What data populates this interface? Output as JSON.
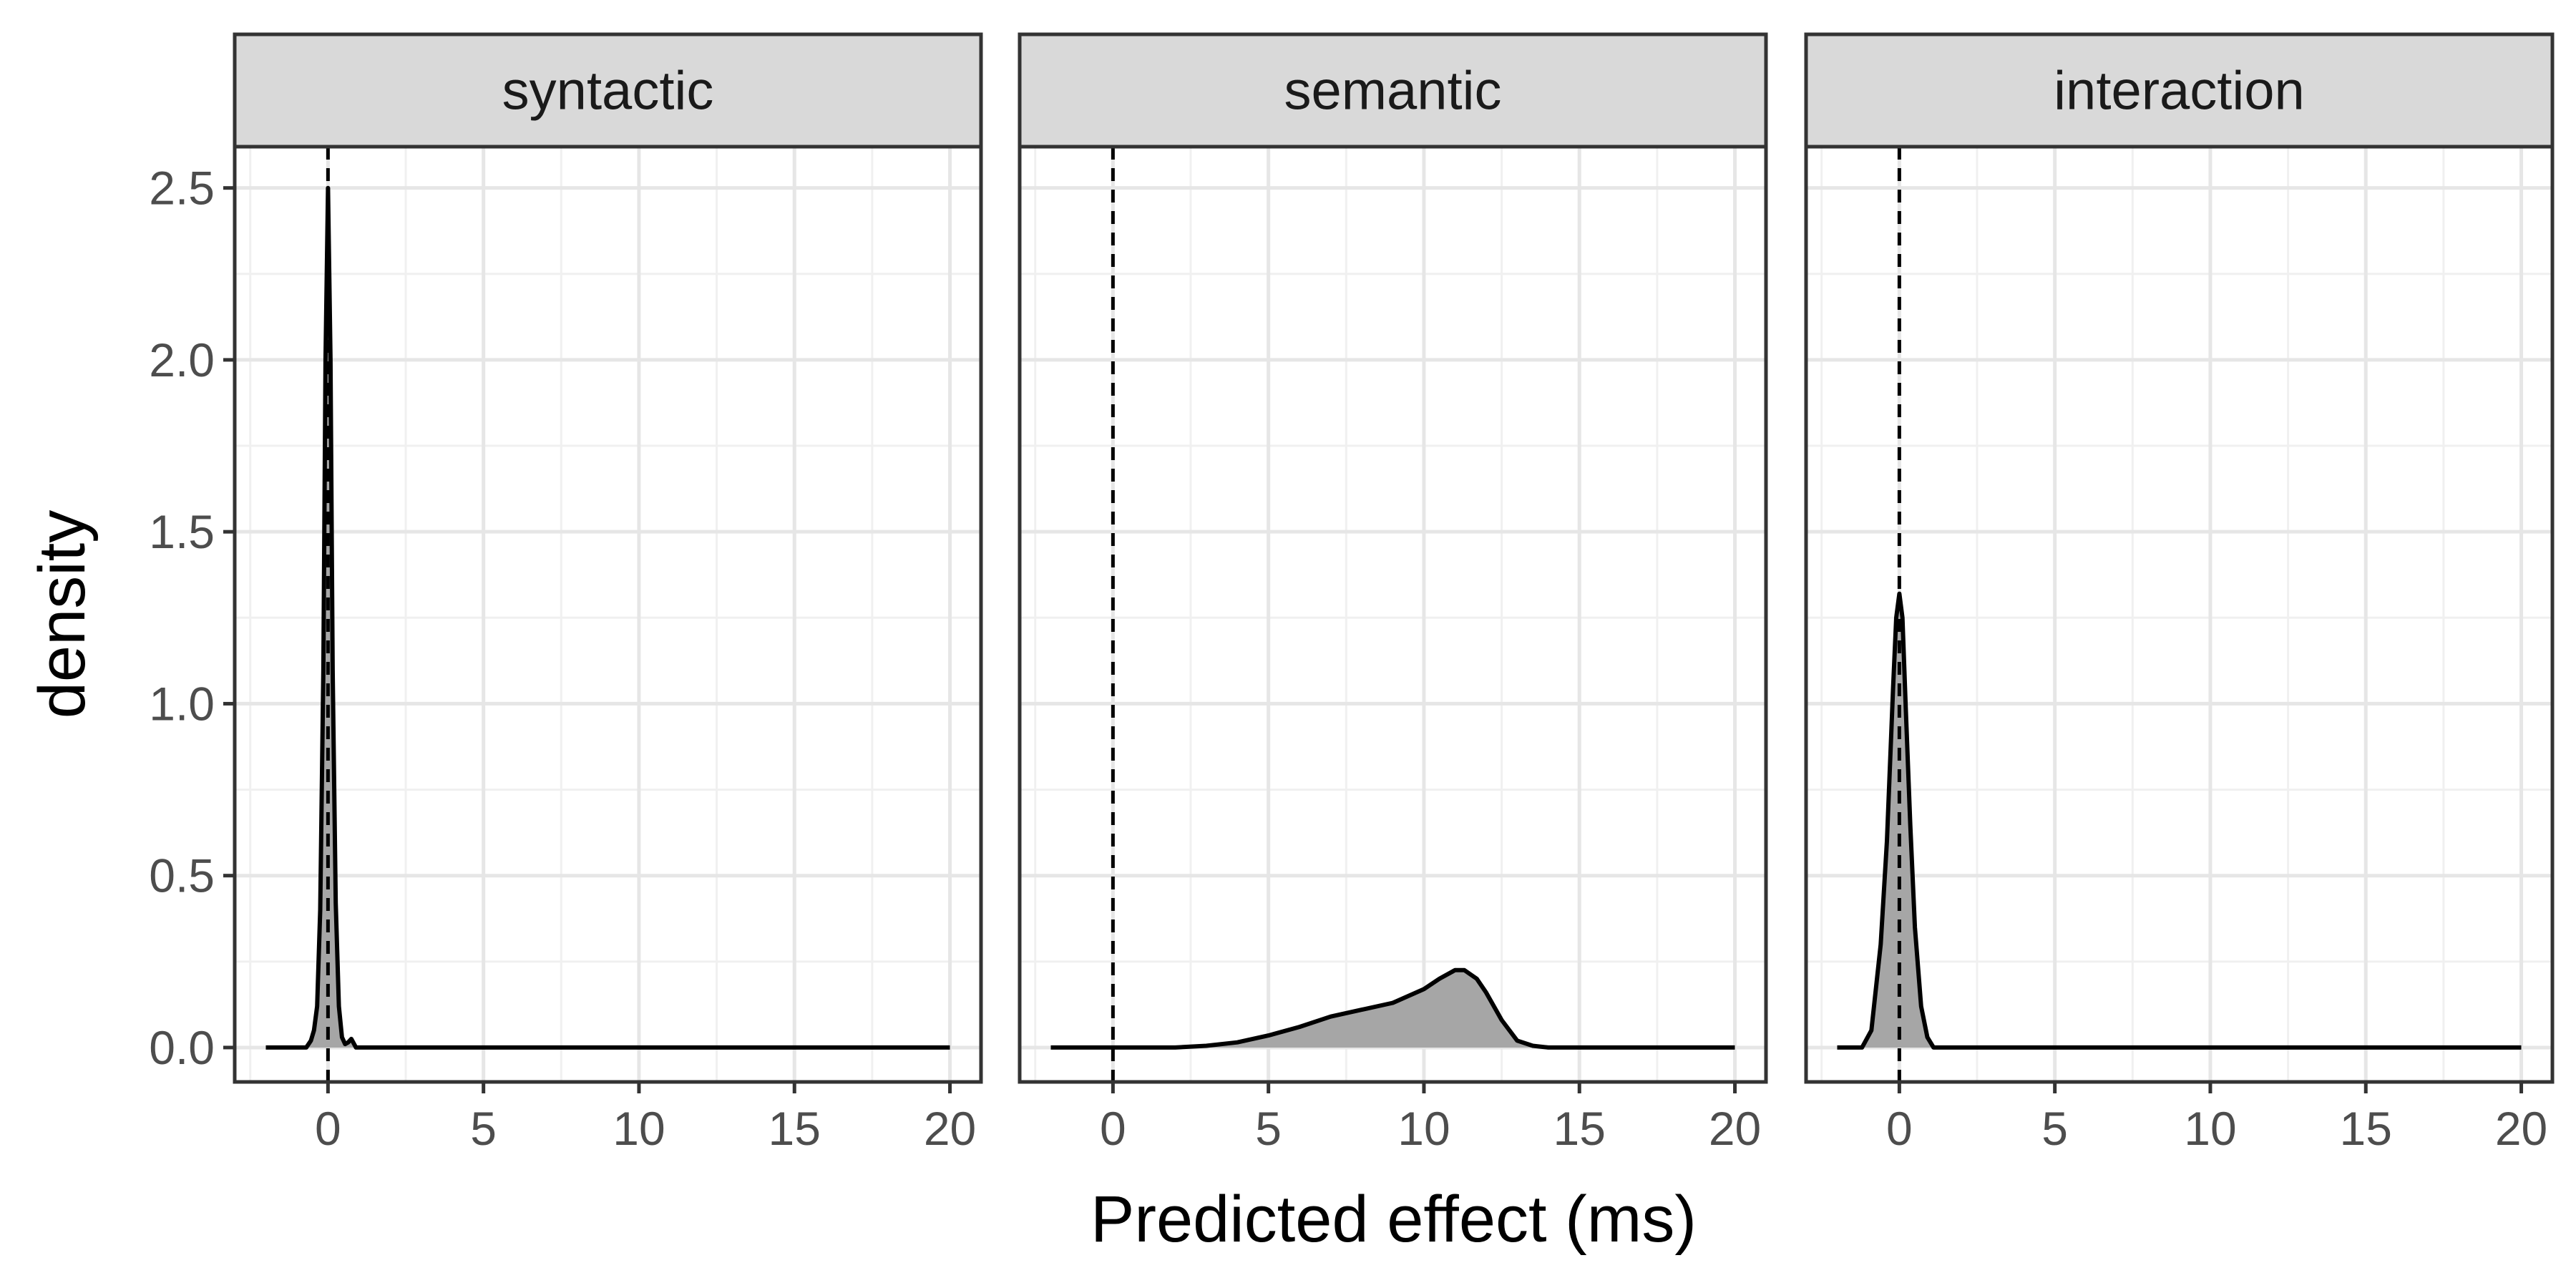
{
  "chart_data": {
    "type": "area",
    "xlabel": "Predicted effect (ms)",
    "ylabel": "density",
    "xlim": [
      -3,
      21
    ],
    "ylim": [
      -0.1,
      2.62
    ],
    "x_ticks": [
      0,
      5,
      10,
      15,
      20
    ],
    "x_tick_labels": [
      "0",
      "5",
      "10",
      "15",
      "20"
    ],
    "y_ticks": [
      0,
      0.5,
      1,
      1.5,
      2,
      2.5
    ],
    "y_tick_labels": [
      "0.0",
      "0.5",
      "1.0",
      "1.5",
      "2.0",
      "2.5"
    ],
    "grid": true,
    "fill_color": "#a6a6a6",
    "line_color": "#000000",
    "strip_color": "#d9d9d9",
    "reference_line": {
      "x": 0,
      "style": "dashed"
    },
    "panels": [
      {
        "label": "syntactic",
        "x": [
          -2,
          -0.7,
          -0.55,
          -0.45,
          -0.35,
          -0.25,
          -0.15,
          -0.08,
          0,
          0.08,
          0.15,
          0.25,
          0.35,
          0.45,
          0.55,
          0.65,
          0.75,
          0.9,
          20
        ],
        "y": [
          0,
          0,
          0.02,
          0.05,
          0.12,
          0.4,
          1.1,
          2.0,
          2.5,
          2.0,
          1.1,
          0.42,
          0.12,
          0.03,
          0.01,
          0.015,
          0.025,
          0,
          0
        ]
      },
      {
        "label": "semantic",
        "x": [
          -2,
          2,
          3,
          4,
          5,
          6,
          7,
          8,
          9,
          10,
          10.5,
          11,
          11.3,
          11.7,
          12,
          12.5,
          13,
          13.5,
          14,
          20
        ],
        "y": [
          0,
          0,
          0.005,
          0.015,
          0.035,
          0.06,
          0.09,
          0.11,
          0.13,
          0.17,
          0.2,
          0.225,
          0.225,
          0.2,
          0.16,
          0.08,
          0.02,
          0.005,
          0,
          0
        ]
      },
      {
        "label": "interaction",
        "x": [
          -2,
          -1.2,
          -0.9,
          -0.6,
          -0.4,
          -0.2,
          -0.1,
          0,
          0.1,
          0.2,
          0.35,
          0.5,
          0.7,
          0.9,
          1.1,
          20
        ],
        "y": [
          0,
          0,
          0.05,
          0.3,
          0.6,
          1.05,
          1.25,
          1.32,
          1.25,
          1.0,
          0.65,
          0.35,
          0.12,
          0.03,
          0,
          0
        ]
      }
    ]
  }
}
